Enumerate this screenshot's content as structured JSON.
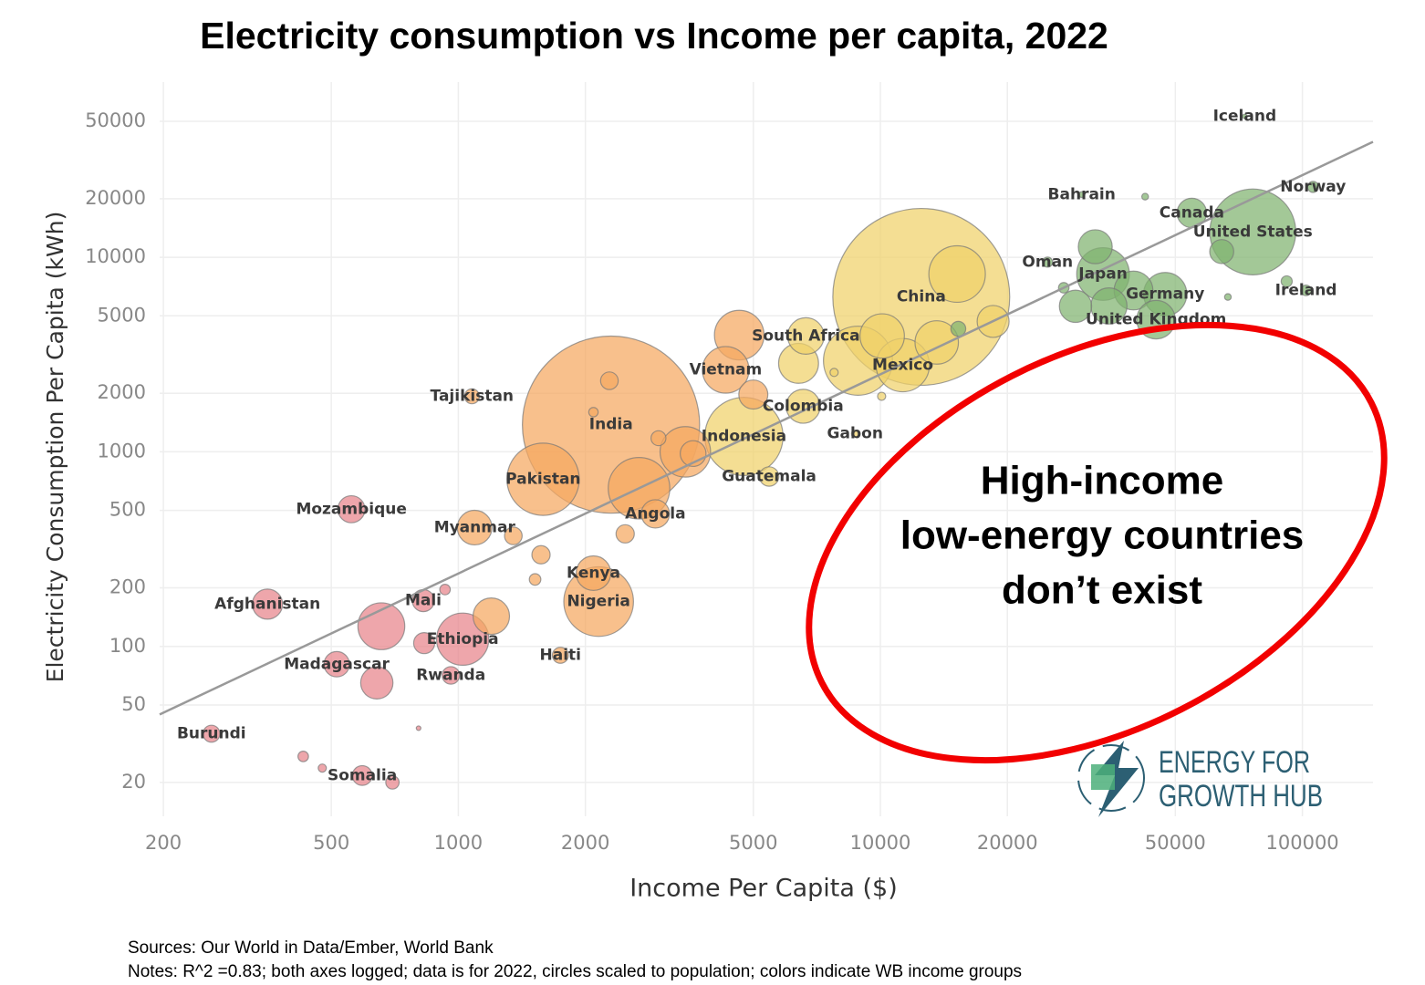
{
  "chart_data": {
    "type": "scatter",
    "title": "Electricity consumption vs Income per capita, 2022",
    "x_label": "Income Per Capita ($)",
    "y_label": "Electricity Consumption Per Capita (kWh)",
    "xscale": "log",
    "yscale": "log",
    "grid": true,
    "xlim": [
      196,
      147000
    ],
    "ylim": [
      13.4,
      79500
    ],
    "xticks": [
      200,
      500,
      1000,
      2000,
      5000,
      10000,
      20000,
      50000,
      100000
    ],
    "yticks": [
      20,
      50,
      100,
      200,
      500,
      1000,
      2000,
      5000,
      10000,
      20000,
      50000
    ],
    "series": [
      {
        "color": "#e8838a",
        "labels": [
          "Mozambique",
          "Afghanistan",
          "Mali",
          "Ethiopia",
          "Madagascar",
          "Rwanda",
          "Burundi",
          "Somalia",
          null,
          null,
          null,
          null,
          null,
          null,
          null,
          null
        ],
        "x": [
          558,
          353,
          826,
          1024,
          515,
          960,
          260,
          592,
          657,
          641,
          429,
          476,
          698,
          805,
          930,
          830
        ],
        "values": [
          507,
          165,
          172,
          109,
          81,
          71,
          35.6,
          21.7,
          127,
          65,
          27.2,
          23.7,
          20,
          38,
          196,
          104
        ],
        "sizes": [
          33,
          41,
          22,
          123,
          29,
          13.8,
          12.9,
          17.6,
          99,
          47,
          5,
          3,
          8,
          0.5,
          5,
          20
        ]
      },
      {
        "color": "#f5a75f",
        "labels": [
          "Tajikistan",
          "India",
          "Pakistan",
          "Angola",
          "Myanmar",
          "Kenya",
          "Nigeria",
          "Haiti",
          "Vietnam",
          null,
          null,
          null,
          null,
          null,
          null,
          null,
          null,
          null,
          null,
          null,
          null,
          null
        ],
        "x": [
          1077,
          2300,
          1588,
          2930,
          1093,
          2090,
          2150,
          1745,
          4300,
          2680,
          3450,
          4630,
          5000,
          1197,
          1570,
          1520,
          1350,
          2485,
          2280,
          3600,
          2980,
          2090
        ],
        "values": [
          1930,
          1380,
          723,
          480,
          408,
          238,
          170,
          90,
          2640,
          650,
          1000,
          3980,
          1970,
          143,
          296,
          221,
          370,
          379,
          2320,
          980,
          1175,
          1600
        ],
        "sizes": [
          10,
          1417,
          236,
          36,
          54,
          54,
          219,
          11.5,
          98,
          171,
          115,
          111,
          38,
          60,
          15,
          6,
          14,
          15,
          14,
          30,
          10,
          4
        ]
      },
      {
        "color": "#f0d16a",
        "labels": [
          "China",
          "South Africa",
          "Mexico",
          "Colombia",
          "Indonesia",
          "Gabon",
          "Guatemala",
          null,
          null,
          null,
          null,
          null,
          null,
          null,
          null
        ],
        "x": [
          12500,
          6660,
          11300,
          6560,
          4750,
          8710,
          5450,
          8850,
          15200,
          13600,
          10100,
          6400,
          18500,
          10070,
          7770
        ],
        "values": [
          6260,
          3940,
          2790,
          1715,
          1200,
          1240,
          747,
          2940,
          8200,
          3650,
          3940,
          2850,
          4680,
          1930,
          2560
        ],
        "sizes": [
          1412,
          60,
          128,
          52,
          276,
          2.4,
          17,
          215,
          144,
          85,
          89,
          72,
          46,
          3,
          3
        ]
      },
      {
        "color": "#80b36f",
        "labels": [
          "Iceland",
          "Norway",
          "Bahrain",
          "Canada",
          "United States",
          "Oman",
          "Japan",
          "Germany",
          "Ireland",
          "United Kingdom",
          null,
          null,
          null,
          null,
          null,
          null,
          null,
          null,
          null,
          null
        ],
        "x": [
          73000,
          106000,
          30000,
          54700,
          76300,
          24900,
          33700,
          47300,
          102000,
          45000,
          32300,
          39800,
          34800,
          42400,
          64400,
          15300,
          66600,
          91800,
          27200,
          29000
        ],
        "values": [
          53000,
          23000,
          21000,
          16900,
          13500,
          9440,
          8200,
          6470,
          6760,
          4780,
          11330,
          6750,
          5620,
          20500,
          10700,
          4290,
          6250,
          7520,
          6970,
          5600
        ],
        "sizes": [
          0.37,
          5.5,
          1.5,
          39,
          333,
          4.6,
          125,
          84,
          5.1,
          67,
          52,
          68,
          59,
          2,
          26,
          10,
          2,
          5.5,
          5,
          47
        ]
      }
    ],
    "trendline": {
      "x": [
        196,
        147000
      ],
      "y": [
        44.7,
        39200
      ],
      "color": "#999999"
    },
    "annotation": [
      "High-income",
      "low-energy countries",
      "don’t exist"
    ],
    "logo": [
      "ENERGY FOR",
      "GROWTH HUB"
    ],
    "notes": [
      "Sources: Our World in Data/Ember, World Bank",
      "Notes: R^2 =0.83; both axes logged; data is for 2022, circles scaled to population; colors indicate WB income groups"
    ]
  }
}
